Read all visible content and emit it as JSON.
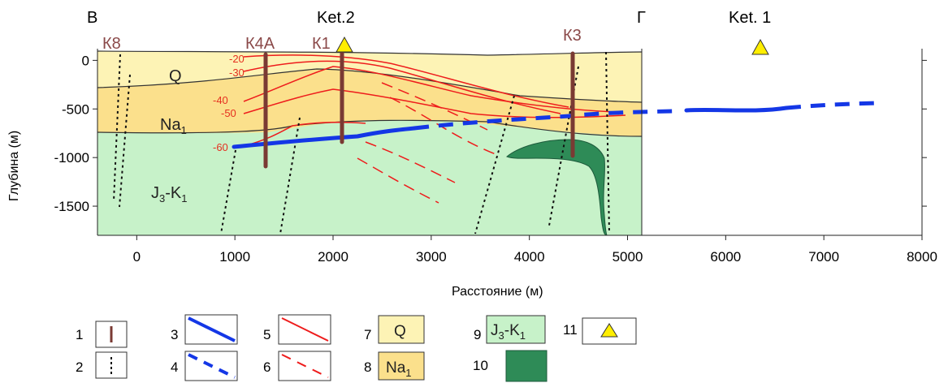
{
  "chart_data": {
    "type": "diagram",
    "profile_labels": {
      "left": "В",
      "right": "Г"
    },
    "ylabel": "Глубина (м)",
    "xlabel": "Расстояние (м)",
    "xlim": [
      -400,
      8000
    ],
    "ylim": [
      -1800,
      120
    ],
    "x_ticks": [
      0,
      1000,
      2000,
      3000,
      4000,
      5000,
      6000,
      7000,
      8000
    ],
    "y_ticks": [
      0,
      -500,
      -1000,
      -1500
    ],
    "wells": [
      {
        "name": "К8",
        "x": -200
      },
      {
        "name": "К4А",
        "x": 1300
      },
      {
        "name": "К1",
        "x": 2100
      },
      {
        "name": "К3",
        "x": 4450
      }
    ],
    "stations": [
      {
        "name": "Ket.2",
        "x": 2100
      },
      {
        "name": "Ket. 1",
        "x": 6350
      }
    ],
    "contours": [
      "-20",
      "-30",
      "-40",
      "-50",
      "-60"
    ],
    "layers": {
      "q": "Q",
      "na": {
        "base": "Na",
        "sub": "1"
      },
      "jk": {
        "a": "J",
        "a_sub": "3",
        "b": "K",
        "b_sub": "1"
      }
    },
    "legend_numbers": [
      "1",
      "2",
      "3",
      "4",
      "5",
      "6",
      "7",
      "8",
      "9",
      "10",
      "11"
    ]
  },
  "colors": {
    "q": "#fdf3b5",
    "na": "#fbe08c",
    "jk": "#c7f2c9",
    "intrusion": "#2e8b57",
    "well": "#7a3a33",
    "contour": "#ee1c1c",
    "boundary": "#1437e6",
    "station": "#ffee00"
  }
}
